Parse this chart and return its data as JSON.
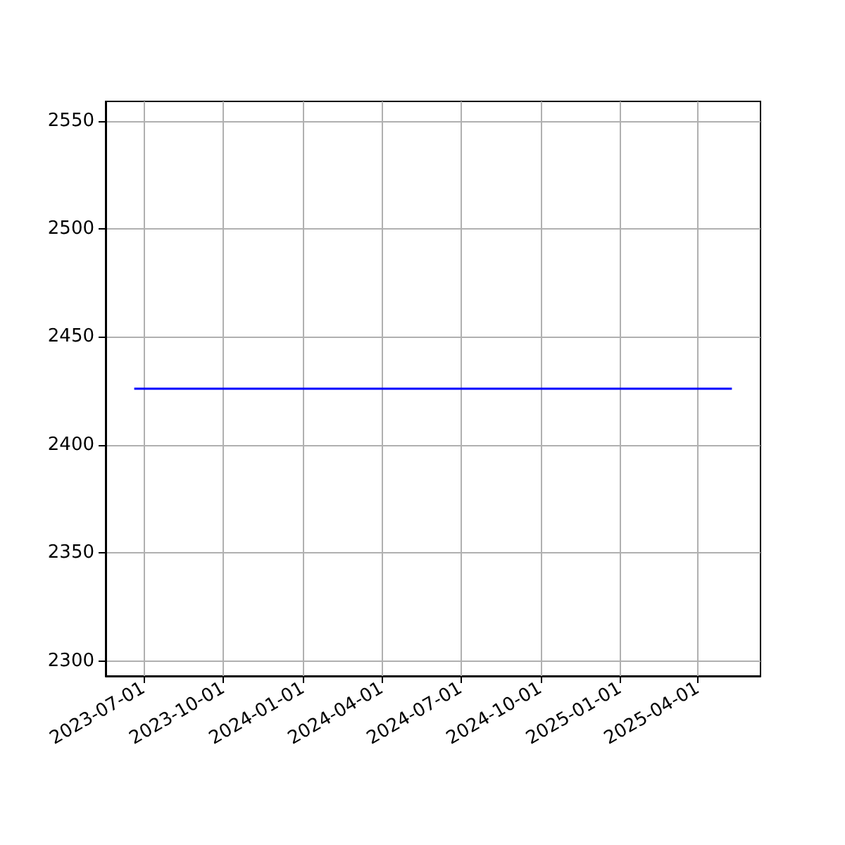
{
  "chart_data": {
    "type": "line",
    "x": [
      "2023-06-20",
      "2025-05-10"
    ],
    "series": [
      {
        "color": "#0000ff",
        "values": [
          2426,
          2426
        ]
      }
    ],
    "xlim": [
      "2023-05-18",
      "2025-06-12"
    ],
    "xticks": [
      "2023-07-01",
      "2023-10-01",
      "2024-01-01",
      "2024-04-01",
      "2024-07-01",
      "2024-10-01",
      "2025-01-01",
      "2025-04-01"
    ],
    "ylim": [
      2293,
      2559
    ],
    "yticks": [
      2300,
      2350,
      2400,
      2450,
      2500,
      2550
    ],
    "grid": true,
    "marker": "none",
    "line_style": "solid"
  }
}
